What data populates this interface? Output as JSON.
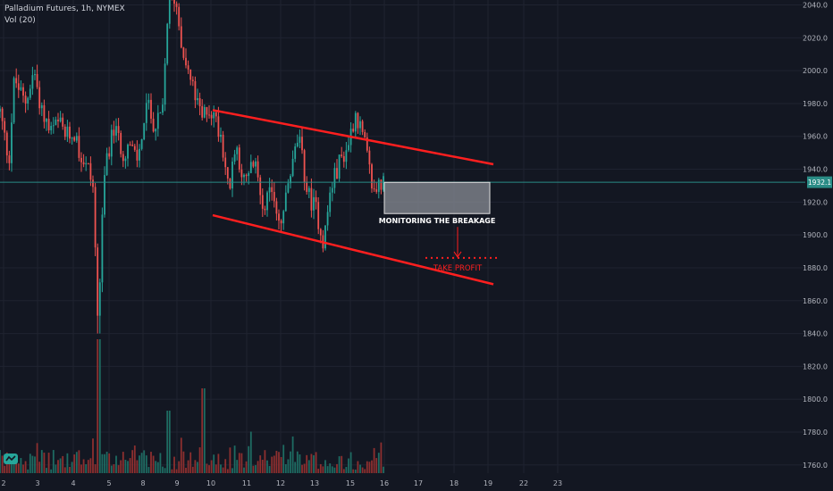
{
  "legend": {
    "title": "Palladium Futures, 1h, NYMEX",
    "volume_label": "Vol (20)"
  },
  "colors": {
    "background": "#131722",
    "up": "#26a69a",
    "down": "#ef5350",
    "vol_up": "#1e6b62",
    "vol_down": "#8d2f2f",
    "grid": "#1f2330",
    "channel": "#ff1f1f",
    "price_line": "#2a8c86",
    "box_fill": "#8a8d96",
    "text": "#b2b5be"
  },
  "price_badge": "1932.1",
  "annotations": {
    "box_label": "MONITORING THE BREAKAGE",
    "target_label": "TAKE PROFIT"
  },
  "logo_icon": "tradingview-logo-icon",
  "chart_data": {
    "type": "candlestick",
    "title": "Palladium Futures, 1h, NYMEX",
    "indicator": "Vol (20)",
    "last_price": 1932.1,
    "ylim": [
      1755,
      2043
    ],
    "xlim": [
      1.5,
      24.0
    ],
    "y_ticks": [
      1760,
      1780,
      1800,
      1820,
      1840,
      1860,
      1880,
      1900,
      1920,
      1940,
      1960,
      1980,
      2000,
      2020,
      2040
    ],
    "y_tick_labels": [
      "1760.0",
      "1780.0",
      "1800.0",
      "1820.0",
      "1840.0",
      "1860.0",
      "1880.0",
      "1900.0",
      "1920.0",
      "1940.0",
      "1960.0",
      "1980.0",
      "2000.0",
      "2020.0",
      "2040.0"
    ],
    "x_ticks": [
      2,
      3,
      4,
      5,
      8,
      9,
      10,
      11,
      12,
      13,
      15,
      16,
      17,
      18,
      19,
      22,
      23
    ],
    "x_tick_labels": [
      "2",
      "3",
      "4",
      "5",
      "8",
      "9",
      "10",
      "11",
      "12",
      "13",
      "15",
      "16",
      "17",
      "18",
      "19",
      "22",
      "23"
    ],
    "x_tick_positions": [
      1.6,
      2.55,
      3.55,
      4.55,
      5.5,
      6.45,
      7.4,
      8.4,
      9.35,
      10.3,
      11.3,
      12.25,
      13.2,
      14.2,
      15.15,
      16.15,
      17.1
    ],
    "price_path": [
      [
        1.5,
        1975
      ],
      [
        1.75,
        1945
      ],
      [
        1.9,
        1995
      ],
      [
        2.2,
        1980
      ],
      [
        2.45,
        2000
      ],
      [
        2.65,
        1978
      ],
      [
        2.9,
        1962
      ],
      [
        3.15,
        1968
      ],
      [
        3.35,
        1960
      ],
      [
        3.6,
        1962
      ],
      [
        3.75,
        1948
      ],
      [
        3.95,
        1942
      ],
      [
        4.1,
        1930
      ],
      [
        4.25,
        1840
      ],
      [
        4.32,
        1890
      ],
      [
        4.45,
        1945
      ],
      [
        4.7,
        1965
      ],
      [
        4.95,
        1950
      ],
      [
        5.1,
        1955
      ],
      [
        5.35,
        1945
      ],
      [
        5.6,
        1980
      ],
      [
        5.85,
        1965
      ],
      [
        6.05,
        1975
      ],
      [
        6.2,
        2040
      ],
      [
        6.4,
        2045
      ],
      [
        6.6,
        2015
      ],
      [
        6.75,
        2000
      ],
      [
        6.95,
        1985
      ],
      [
        7.15,
        1970
      ],
      [
        7.3,
        1978
      ],
      [
        7.5,
        1972
      ],
      [
        7.7,
        1960
      ],
      [
        7.9,
        1925
      ],
      [
        8.1,
        1955
      ],
      [
        8.35,
        1930
      ],
      [
        8.6,
        1945
      ],
      [
        8.85,
        1920
      ],
      [
        9.15,
        1925
      ],
      [
        9.35,
        1905
      ],
      [
        9.6,
        1935
      ],
      [
        9.85,
        1960
      ],
      [
        10.1,
        1925
      ],
      [
        10.35,
        1915
      ],
      [
        10.55,
        1895
      ],
      [
        10.75,
        1928
      ],
      [
        11.0,
        1945
      ],
      [
        11.2,
        1952
      ],
      [
        11.45,
        1975
      ],
      [
        11.7,
        1955
      ],
      [
        11.95,
        1925
      ],
      [
        12.1,
        1932
      ],
      [
        12.3,
        1930
      ]
    ],
    "channel_upper": [
      [
        7.45,
        1976
      ],
      [
        15.3,
        1943
      ]
    ],
    "channel_lower": [
      [
        7.45,
        1912
      ],
      [
        15.3,
        1870
      ]
    ],
    "annotation_box": {
      "label": "MONITORING THE BREAKAGE",
      "x_start": 12.25,
      "x_end": 15.2,
      "y_top": 1932,
      "y_bottom": 1913
    },
    "take_profit": {
      "label": "TAKE PROFIT",
      "x_start": 13.4,
      "x_end": 15.5,
      "y": 1886,
      "arrow_x": 14.3
    },
    "grid": true
  }
}
